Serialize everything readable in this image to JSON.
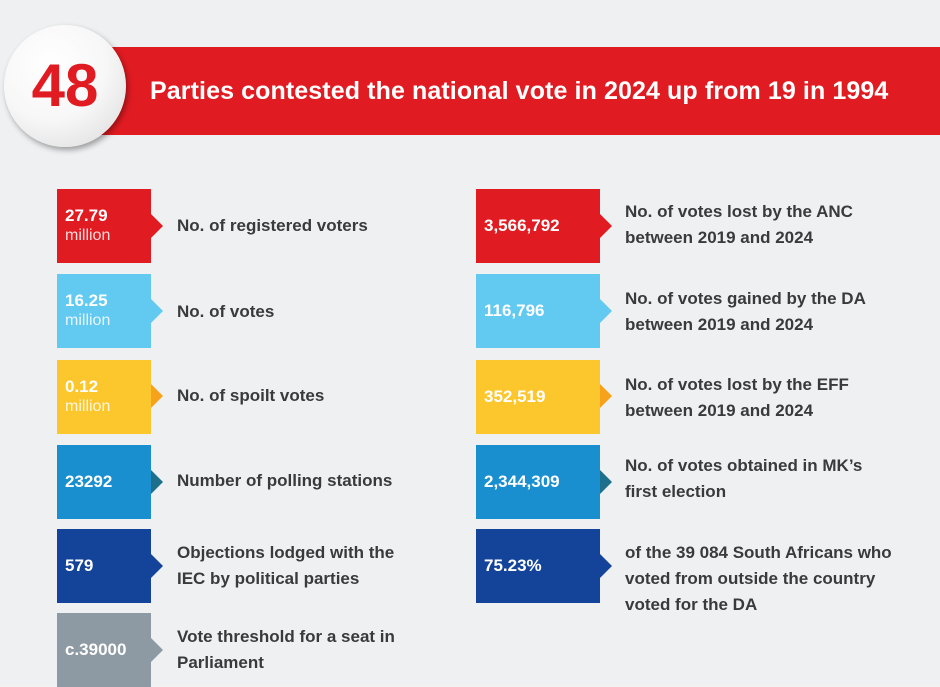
{
  "header": {
    "number": "48",
    "title": "Parties contested the national vote in 2024 up from 19 in 1994",
    "color": "#e11b22"
  },
  "left": [
    {
      "value": "27.79",
      "unit": "million",
      "label": "No. of registered voters",
      "color": "#e11b22"
    },
    {
      "value": "16.25",
      "unit": "million",
      "label": "No. of votes",
      "color": "#62c9f0"
    },
    {
      "value": "0.12",
      "unit": "million",
      "label": "No. of spoilt votes",
      "color": "#fcc62d"
    },
    {
      "value": "23292",
      "unit": "",
      "label": "Number of polling stations",
      "color": "#1a8fcf"
    },
    {
      "value": "579",
      "unit": "",
      "label": "Objections lodged with the IEC by political parties",
      "color": "#14449a"
    },
    {
      "value": "c.39000",
      "unit": "",
      "label": "Vote threshold for a seat in Parliament",
      "color": "#8e9aa3"
    }
  ],
  "right": [
    {
      "value": "3,566,792",
      "label": "No. of votes lost by the ANC between 2019 and 2024",
      "color": "#e11b22"
    },
    {
      "value": "116,796",
      "label": "No. of votes gained by the DA between 2019 and 2024",
      "color": "#62c9f0"
    },
    {
      "value": "352,519",
      "label": "No. of votes lost by the EFF between 2019 and 2024",
      "color": "#fcc62d"
    },
    {
      "value": "2,344,309",
      "label": "No. of votes obtained in MK’s first election",
      "color": "#1a8fcf"
    },
    {
      "value": "75.23%",
      "label": "of the 39 084 South Africans who voted from outside the country voted for the DA",
      "color": "#14449a"
    }
  ]
}
